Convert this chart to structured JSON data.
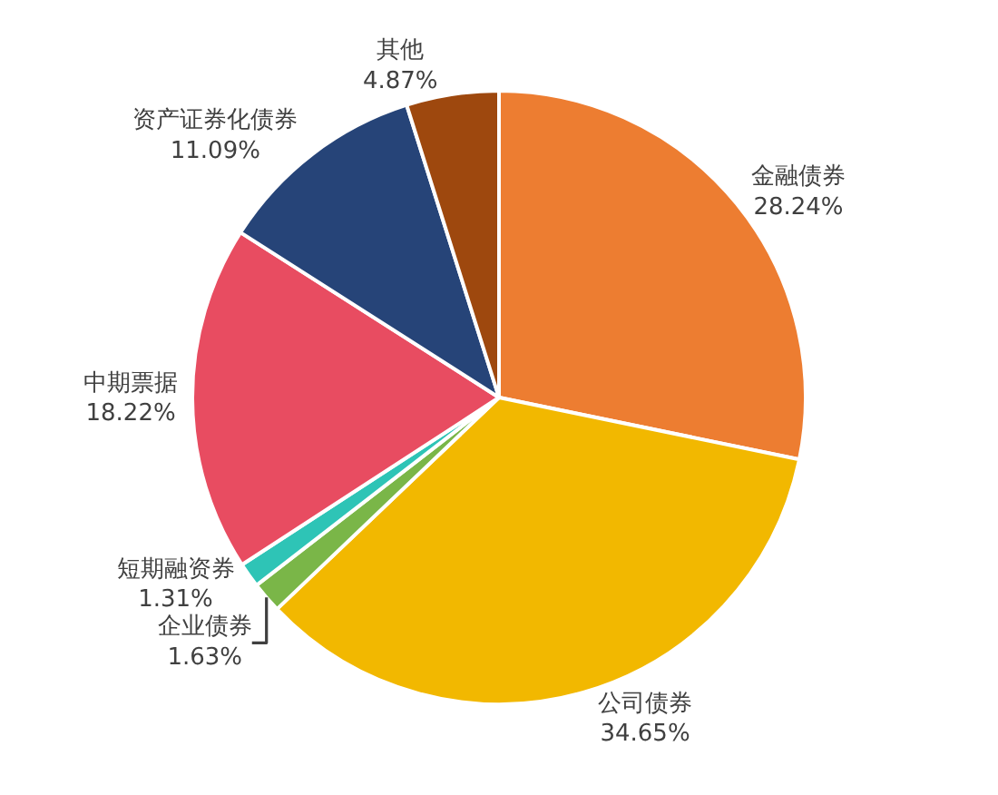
{
  "chart_data": {
    "type": "pie",
    "categories": [
      "金融债券",
      "公司债券",
      "企业债券",
      "短期融资券",
      "中期票据",
      "资产证券化债券",
      "其他"
    ],
    "values": [
      28.24,
      34.65,
      1.63,
      1.31,
      18.22,
      11.09,
      4.87
    ],
    "value_labels": [
      "28.24%",
      "34.65%",
      "1.63%",
      "1.31%",
      "18.22%",
      "11.09%",
      "4.87%"
    ],
    "colors": [
      "#ed7d31",
      "#f2b800",
      "#7ab648",
      "#2ec4b6",
      "#e84c61",
      "#264478",
      "#9e480e"
    ],
    "legend": false
  }
}
